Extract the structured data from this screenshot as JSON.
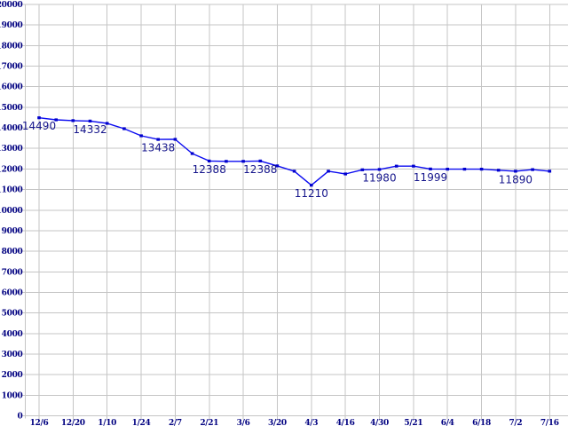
{
  "chart_data": {
    "type": "line",
    "title": "",
    "xlabel": "",
    "ylabel": "",
    "legend_position": "none",
    "grid": true,
    "ylim": [
      0,
      20000
    ],
    "ystep": 1000,
    "x_tick_labels": [
      "12/6",
      "12/20",
      "1/10",
      "1/24",
      "2/7",
      "2/21",
      "3/6",
      "3/20",
      "4/3",
      "4/16",
      "4/30",
      "5/21",
      "6/4",
      "6/18",
      "7/2",
      "7/16"
    ],
    "points_per_tick": 2,
    "series": [
      {
        "name": "value-series",
        "values": [
          14490,
          14390,
          14350,
          14332,
          14220,
          13960,
          13615,
          13438,
          13440,
          12750,
          12388,
          12370,
          12370,
          12388,
          12150,
          11890,
          11210,
          11890,
          11760,
          11960,
          11980,
          12140,
          12140,
          11999,
          11990,
          11990,
          11990,
          11940,
          11890,
          11970,
          11890
        ]
      }
    ],
    "point_labels": [
      {
        "index": 0,
        "text": "14490"
      },
      {
        "index": 3,
        "text": "14332"
      },
      {
        "index": 7,
        "text": "13438"
      },
      {
        "index": 10,
        "text": "12388"
      },
      {
        "index": 13,
        "text": "12388"
      },
      {
        "index": 16,
        "text": "11210"
      },
      {
        "index": 20,
        "text": "11980"
      },
      {
        "index": 23,
        "text": "11999"
      },
      {
        "index": 28,
        "text": "11890"
      }
    ],
    "colors": {
      "line": "#0a0af0",
      "marker": "#0000cd",
      "axis_text": "#000080",
      "value_text": "#16168c",
      "grid": "#c5c5c5"
    }
  }
}
